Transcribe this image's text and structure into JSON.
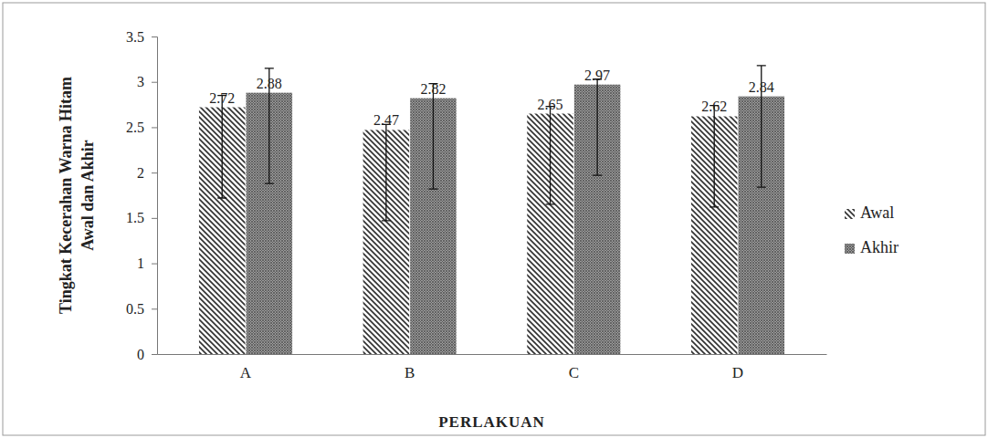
{
  "chart_data": {
    "type": "bar",
    "categories": [
      "A",
      "B",
      "C",
      "D"
    ],
    "series": [
      {
        "name": "Awal",
        "color": "#333333",
        "values": [
          2.72,
          2.47,
          2.65,
          2.62
        ],
        "error_plus": [
          0.13,
          0.06,
          0.08,
          0.12
        ],
        "error_minus": [
          1,
          1,
          1,
          1
        ]
      },
      {
        "name": "Akhir",
        "color": "#555555",
        "values": [
          2.88,
          2.82,
          2.97,
          2.84
        ],
        "error_plus": [
          0.27,
          0.16,
          0.06,
          0.34
        ],
        "error_minus": [
          1,
          1,
          1,
          1
        ]
      }
    ],
    "xlabel": "PERLAKUAN",
    "ylabel": [
      "Tingkat Kecerahan Warna Hitam",
      "Awal dan Akhir"
    ],
    "ylim": [
      0,
      3.5
    ],
    "yticks": [
      0,
      0.5,
      1,
      1.5,
      2,
      2.5,
      3,
      3.5
    ],
    "grid": false,
    "legend": "right",
    "data_labels": true
  }
}
